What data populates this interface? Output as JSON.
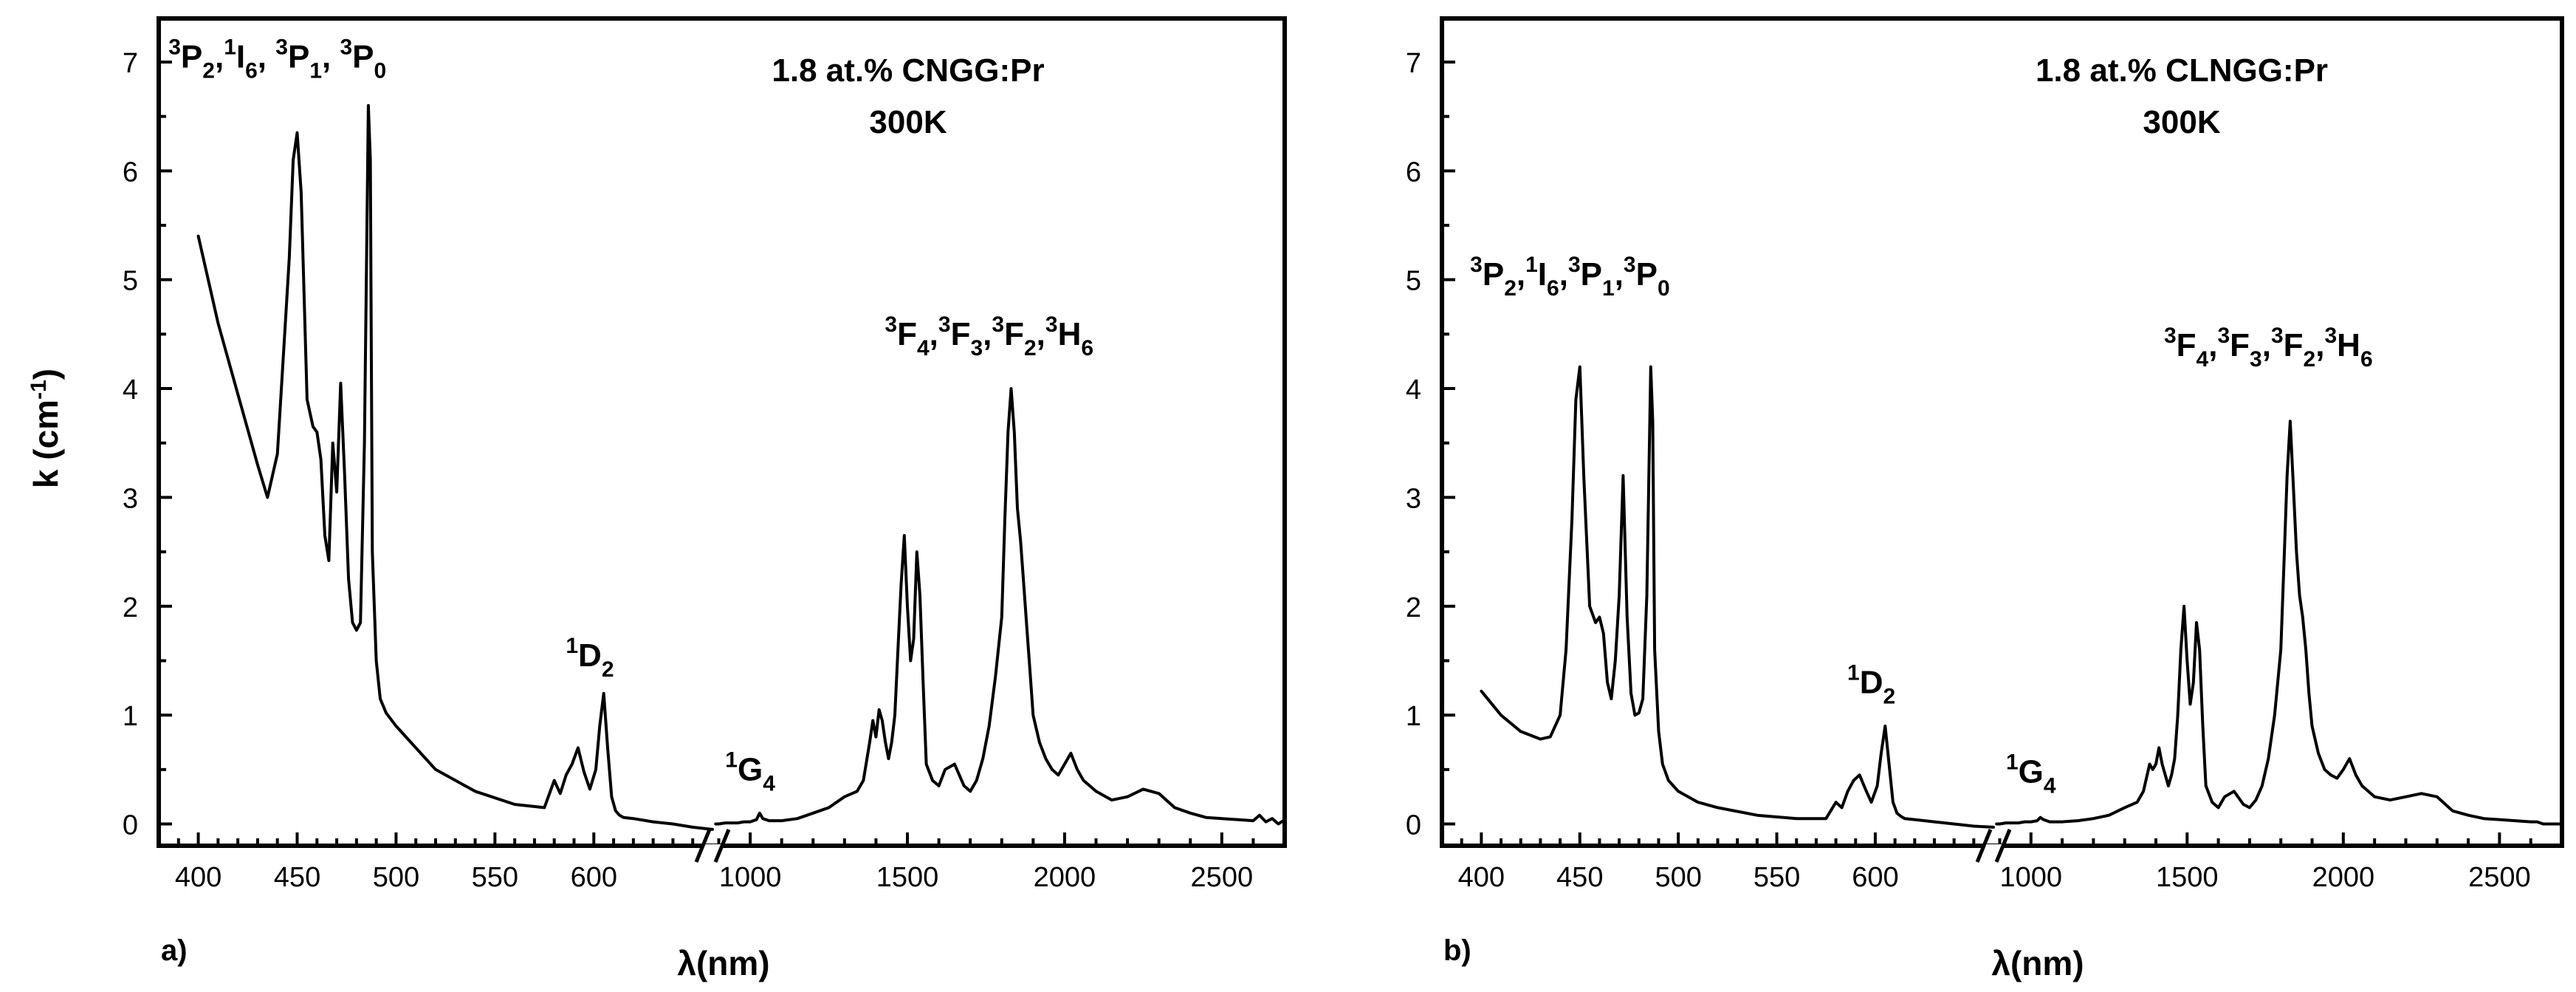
{
  "chart_data": [
    {
      "type": "line",
      "panel_label": "a)",
      "sample_line1": "1.8 at.% CNGG:Pr",
      "sample_line2": "300K",
      "ylabel": "k (cm-1)",
      "xlabel": "λ(nm)",
      "ylim": [
        -0.2,
        7.4
      ],
      "yticks": [
        0,
        1,
        2,
        3,
        4,
        5,
        6,
        7
      ],
      "x_segment_visible": [
        380,
        660
      ],
      "x_segment_ir": [
        880,
        2700
      ],
      "xticks_visible": [
        400,
        450,
        500,
        550,
        600
      ],
      "xticks_ir": [
        1000,
        1500,
        2000,
        2500
      ],
      "annotations": [
        {
          "html": "<tspan class='sub' dy='-18'>3</tspan><tspan dy='18'>P</tspan><tspan class='sub' dy='14'>2</tspan><tspan dy='-14'>,</tspan><tspan class='sub' dy='-18'>1</tspan><tspan dy='18'>I</tspan><tspan class='sub' dy='14'>6</tspan><tspan dy='-14'>, </tspan><tspan class='sub' dy='-18'>3</tspan><tspan dy='18'>P</tspan><tspan class='sub' dy='14'>1</tspan><tspan dy='-14'>, </tspan><tspan class='sub' dy='-18'>3</tspan><tspan dy='18'>P</tspan><tspan class='sub' dy='14'>0</tspan>",
          "text": "3P2,1I6, 3P1, 3P0",
          "x": 440,
          "y": 6.95
        },
        {
          "text": "1D2",
          "x": 598,
          "y": 1.45
        },
        {
          "text": "1G4",
          "x": 1000,
          "y": 0.4
        },
        {
          "text": "3F4,3F3,3F2,3H6",
          "x": 1760,
          "y": 4.4
        }
      ],
      "series": [
        {
          "name": "visible",
          "x": [
            400,
            410,
            420,
            430,
            435,
            440,
            443,
            446,
            448,
            450,
            452,
            455,
            458,
            460,
            462,
            464,
            466,
            468,
            470,
            472,
            474,
            476,
            478,
            480,
            482,
            484,
            486,
            487,
            488,
            490,
            492,
            495,
            500,
            510,
            520,
            540,
            560,
            575,
            580,
            583,
            586,
            589,
            592,
            595,
            598,
            601,
            603,
            605,
            607,
            609,
            611,
            613,
            615,
            620,
            630,
            640,
            650,
            660
          ],
          "y": [
            5.4,
            4.6,
            3.95,
            3.3,
            3.0,
            3.4,
            4.3,
            5.2,
            6.1,
            6.35,
            5.8,
            3.9,
            3.65,
            3.6,
            3.35,
            2.65,
            2.42,
            3.5,
            3.05,
            4.05,
            3.2,
            2.25,
            1.85,
            1.78,
            1.85,
            3.5,
            6.6,
            6.1,
            2.5,
            1.5,
            1.15,
            1.02,
            0.9,
            0.7,
            0.5,
            0.3,
            0.18,
            0.15,
            0.4,
            0.28,
            0.45,
            0.55,
            0.7,
            0.48,
            0.32,
            0.5,
            0.9,
            1.2,
            0.7,
            0.25,
            0.12,
            0.08,
            0.06,
            0.05,
            0.02,
            0.0,
            -0.03,
            -0.05
          ]
        },
        {
          "name": "ir",
          "x": [
            890,
            900,
            920,
            940,
            960,
            980,
            1000,
            1020,
            1030,
            1040,
            1060,
            1080,
            1100,
            1150,
            1200,
            1250,
            1300,
            1340,
            1360,
            1380,
            1390,
            1400,
            1410,
            1420,
            1430,
            1440,
            1450,
            1460,
            1470,
            1480,
            1490,
            1500,
            1510,
            1520,
            1530,
            1540,
            1550,
            1560,
            1580,
            1600,
            1620,
            1650,
            1680,
            1700,
            1720,
            1740,
            1760,
            1780,
            1800,
            1810,
            1820,
            1830,
            1840,
            1850,
            1860,
            1870,
            1880,
            1890,
            1900,
            1920,
            1940,
            1960,
            1980,
            2000,
            2020,
            2040,
            2060,
            2080,
            2100,
            2150,
            2200,
            2250,
            2300,
            2350,
            2400,
            2450,
            2500,
            2550,
            2600,
            2620,
            2640,
            2660,
            2680,
            2700
          ],
          "y": [
            0.0,
            0.0,
            0.01,
            0.01,
            0.01,
            0.02,
            0.02,
            0.04,
            0.1,
            0.05,
            0.03,
            0.03,
            0.03,
            0.05,
            0.1,
            0.15,
            0.25,
            0.3,
            0.4,
            0.75,
            0.95,
            0.8,
            1.05,
            0.95,
            0.75,
            0.6,
            0.75,
            1.0,
            1.6,
            2.2,
            2.65,
            2.0,
            1.5,
            1.7,
            2.5,
            2.1,
            1.3,
            0.55,
            0.4,
            0.35,
            0.5,
            0.55,
            0.35,
            0.3,
            0.4,
            0.6,
            0.9,
            1.35,
            1.9,
            2.8,
            3.6,
            4.0,
            3.6,
            2.9,
            2.6,
            2.2,
            1.8,
            1.4,
            1.0,
            0.75,
            0.6,
            0.5,
            0.45,
            0.55,
            0.65,
            0.5,
            0.4,
            0.35,
            0.3,
            0.22,
            0.25,
            0.32,
            0.28,
            0.15,
            0.1,
            0.06,
            0.05,
            0.04,
            0.03,
            0.08,
            0.02,
            0.05,
            0.0,
            0.04
          ]
        }
      ]
    },
    {
      "type": "line",
      "panel_label": "b)",
      "sample_line1": "1.8 at.% CLNGG:Pr",
      "sample_line2": "300K",
      "ylabel": "",
      "xlabel": "λ(nm)",
      "ylim": [
        -0.2,
        7.4
      ],
      "yticks": [
        0,
        1,
        2,
        3,
        4,
        5,
        6,
        7
      ],
      "x_segment_visible": [
        380,
        660
      ],
      "x_segment_ir": [
        880,
        2700
      ],
      "xticks_visible": [
        400,
        450,
        500,
        550,
        600
      ],
      "xticks_ir": [
        1000,
        1500,
        2000,
        2500
      ],
      "annotations": [
        {
          "text": "3P2,1I6,3P1,3P0",
          "x": 445,
          "y": 4.95
        },
        {
          "text": "1D2",
          "x": 598,
          "y": 1.2
        },
        {
          "text": "1G4",
          "x": 1000,
          "y": 0.38
        },
        {
          "text": "3F4,3F3,3F2,3H6",
          "x": 1760,
          "y": 4.3
        }
      ],
      "series": [
        {
          "name": "visible",
          "x": [
            400,
            410,
            420,
            430,
            435,
            440,
            443,
            446,
            448,
            450,
            452,
            455,
            458,
            460,
            462,
            464,
            466,
            468,
            470,
            472,
            474,
            476,
            478,
            480,
            482,
            484,
            486,
            487,
            488,
            490,
            492,
            495,
            500,
            510,
            520,
            540,
            560,
            575,
            580,
            583,
            586,
            589,
            592,
            595,
            598,
            601,
            603,
            605,
            607,
            609,
            611,
            613,
            615,
            620,
            630,
            640,
            650,
            660
          ],
          "y": [
            1.22,
            1.0,
            0.85,
            0.78,
            0.8,
            1.0,
            1.6,
            2.8,
            3.9,
            4.2,
            3.2,
            2.0,
            1.85,
            1.9,
            1.75,
            1.3,
            1.15,
            1.5,
            2.1,
            3.2,
            1.9,
            1.2,
            1.0,
            1.02,
            1.15,
            2.1,
            4.2,
            3.7,
            1.6,
            0.85,
            0.55,
            0.4,
            0.3,
            0.2,
            0.15,
            0.08,
            0.05,
            0.05,
            0.2,
            0.15,
            0.3,
            0.4,
            0.45,
            0.32,
            0.2,
            0.35,
            0.65,
            0.9,
            0.55,
            0.2,
            0.1,
            0.07,
            0.05,
            0.04,
            0.02,
            0.0,
            -0.02,
            -0.03
          ]
        },
        {
          "name": "ir",
          "x": [
            890,
            900,
            920,
            940,
            960,
            980,
            1000,
            1020,
            1030,
            1040,
            1060,
            1080,
            1100,
            1150,
            1200,
            1250,
            1300,
            1340,
            1360,
            1380,
            1390,
            1400,
            1410,
            1420,
            1430,
            1440,
            1450,
            1460,
            1470,
            1480,
            1490,
            1500,
            1510,
            1520,
            1530,
            1540,
            1550,
            1560,
            1580,
            1600,
            1620,
            1650,
            1680,
            1700,
            1720,
            1740,
            1760,
            1780,
            1800,
            1810,
            1820,
            1830,
            1840,
            1850,
            1860,
            1870,
            1880,
            1890,
            1900,
            1920,
            1940,
            1960,
            1980,
            2000,
            2020,
            2040,
            2060,
            2080,
            2100,
            2150,
            2200,
            2250,
            2300,
            2350,
            2400,
            2450,
            2500,
            2550,
            2600,
            2620,
            2640,
            2660,
            2680,
            2700
          ],
          "y": [
            0.0,
            0.0,
            0.01,
            0.01,
            0.01,
            0.02,
            0.02,
            0.03,
            0.06,
            0.04,
            0.02,
            0.02,
            0.02,
            0.03,
            0.05,
            0.08,
            0.15,
            0.2,
            0.3,
            0.55,
            0.5,
            0.55,
            0.7,
            0.55,
            0.45,
            0.35,
            0.45,
            0.6,
            1.0,
            1.6,
            2.0,
            1.5,
            1.1,
            1.3,
            1.85,
            1.6,
            0.9,
            0.35,
            0.2,
            0.15,
            0.25,
            0.3,
            0.18,
            0.15,
            0.22,
            0.35,
            0.6,
            1.0,
            1.6,
            2.4,
            3.2,
            3.7,
            3.1,
            2.5,
            2.1,
            1.9,
            1.6,
            1.2,
            0.9,
            0.65,
            0.5,
            0.45,
            0.42,
            0.5,
            0.6,
            0.45,
            0.35,
            0.3,
            0.25,
            0.22,
            0.25,
            0.28,
            0.25,
            0.12,
            0.08,
            0.05,
            0.04,
            0.03,
            0.02,
            0.02,
            0.0,
            0.0,
            0.0,
            0.0
          ]
        }
      ]
    }
  ]
}
